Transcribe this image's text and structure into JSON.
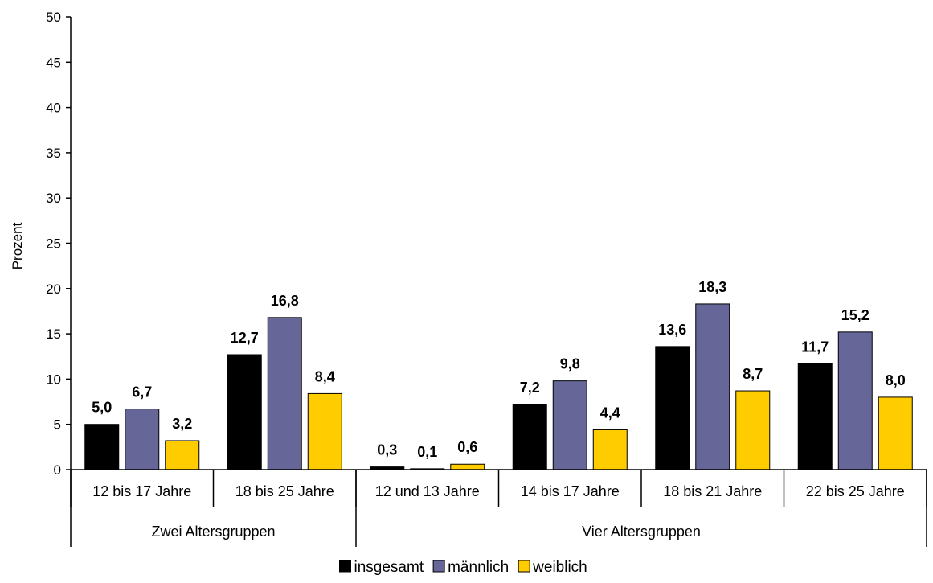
{
  "chart_data": {
    "type": "bar",
    "ylabel": "Prozent",
    "ylim": [
      0,
      50
    ],
    "yticks": [
      0,
      5,
      10,
      15,
      20,
      25,
      30,
      35,
      40,
      45,
      50
    ],
    "categories": [
      "12 bis 17 Jahre",
      "18 bis 25 Jahre",
      "12 und 13 Jahre",
      "14 bis 17 Jahre",
      "18 bis 21 Jahre",
      "22 bis 25 Jahre"
    ],
    "groups": [
      {
        "label": "Zwei Altersgruppen",
        "categories": [
          "12 bis 17 Jahre",
          "18 bis 25 Jahre"
        ]
      },
      {
        "label": "Vier Altersgruppen",
        "categories": [
          "12 und 13 Jahre",
          "14 bis 17 Jahre",
          "18 bis 21 Jahre",
          "22 bis 25 Jahre"
        ]
      }
    ],
    "series": [
      {
        "name": "insgesamt",
        "color": "#000000",
        "values": [
          5.0,
          12.7,
          0.3,
          7.2,
          13.6,
          11.7
        ],
        "labels": [
          "5,0",
          "12,7",
          "0,3",
          "7,2",
          "13,6",
          "11,7"
        ]
      },
      {
        "name": "männlich",
        "color": "#666699",
        "values": [
          6.7,
          16.8,
          0.1,
          9.8,
          18.3,
          15.2
        ],
        "labels": [
          "6,7",
          "16,8",
          "0,1",
          "9,8",
          "18,3",
          "15,2"
        ]
      },
      {
        "name": "weiblich",
        "color": "#FFCC00",
        "values": [
          3.2,
          8.4,
          0.6,
          4.4,
          8.7,
          8.0
        ],
        "labels": [
          "3,2",
          "8,4",
          "0,6",
          "4,4",
          "8,7",
          "8,0"
        ]
      }
    ],
    "legend_position": "bottom",
    "grid": false
  }
}
